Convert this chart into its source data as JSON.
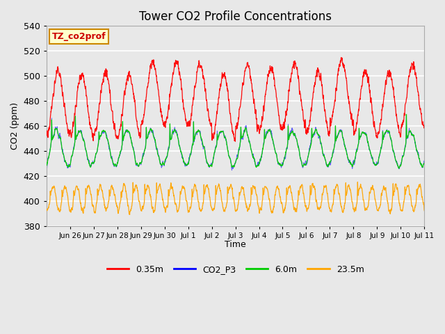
{
  "title": "Tower CO2 Profile Concentrations",
  "xlabel": "Time",
  "ylabel": "CO2 (ppm)",
  "ylim": [
    380,
    540
  ],
  "yticks": [
    380,
    400,
    420,
    440,
    460,
    480,
    500,
    520,
    540
  ],
  "legend_labels": [
    "0.35m",
    "CO2_P3",
    "6.0m",
    "23.5m"
  ],
  "legend_colors": [
    "red",
    "blue",
    "green",
    "orange"
  ],
  "annotation_text": "TZ_co2prof",
  "annotation_bg": "#ffffcc",
  "annotation_border": "#cc8800",
  "fig_bg": "#e8e8e8",
  "plot_bg": "#e8e8e8",
  "grid_color": "white",
  "n_days": 16,
  "points_per_day": 144
}
